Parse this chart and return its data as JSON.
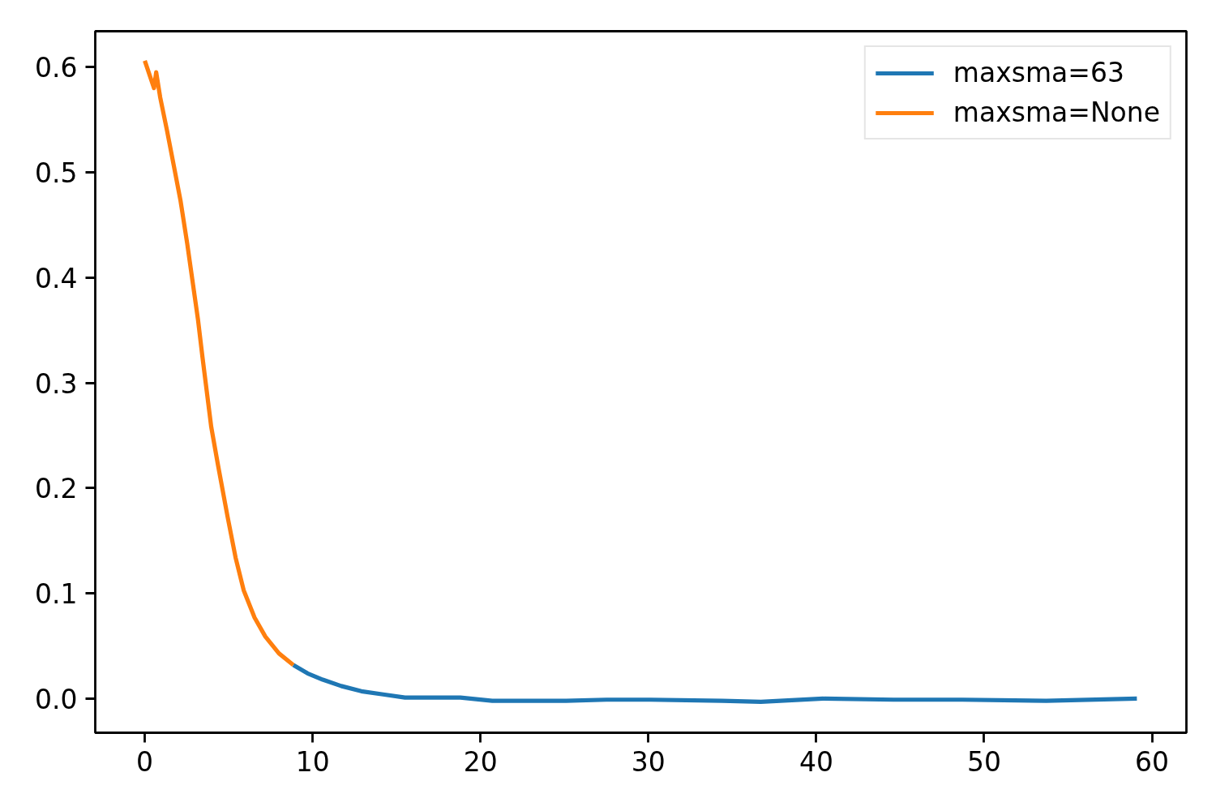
{
  "chart_data": {
    "type": "line",
    "xlim": [
      -2.95,
      62.05
    ],
    "ylim": [
      -0.0324,
      0.634
    ],
    "xticks": [
      0,
      10,
      20,
      30,
      40,
      50,
      60
    ],
    "yticks": [
      {
        "value": 0,
        "label": "0.0"
      },
      0.1,
      0.2,
      0.3,
      0.4,
      0.5,
      0.6
    ],
    "legend": "top right",
    "line_style": "solid",
    "series": [
      {
        "name": "maxsma=63",
        "color": "#1f77b4",
        "x": [
          8.85,
          9.7,
          10.6,
          11.7,
          12.9,
          14.2,
          15.5,
          17.0,
          18.8,
          20.7,
          22.9,
          25.1,
          27.5,
          30.1,
          34.4,
          36.7,
          40.4,
          44.6,
          48.7,
          53.7,
          59.1
        ],
        "values": [
          0.032,
          0.024,
          0.018,
          0.012,
          0.007,
          0.004,
          0.001,
          0.001,
          0.001,
          -0.002,
          -0.002,
          -0.002,
          -0.001,
          -0.001,
          -0.002,
          -0.003,
          0.0,
          -0.001,
          -0.001,
          -0.002,
          0.0
        ]
      },
      {
        "name": "maxsma=None",
        "color": "#ff7f0e",
        "x": [
          0,
          0.55,
          0.68,
          0.92,
          1.32,
          1.72,
          2.13,
          2.53,
          2.85,
          3.17,
          3.44,
          3.96,
          4.36,
          4.93,
          5.41,
          5.89,
          6.54,
          7.18,
          7.99,
          8.85
        ],
        "values": [
          0.606,
          0.58,
          0.595,
          0.571,
          0.54,
          0.507,
          0.473,
          0.432,
          0.396,
          0.36,
          0.324,
          0.258,
          0.222,
          0.173,
          0.134,
          0.103,
          0.077,
          0.059,
          0.043,
          0.032
        ]
      }
    ]
  }
}
